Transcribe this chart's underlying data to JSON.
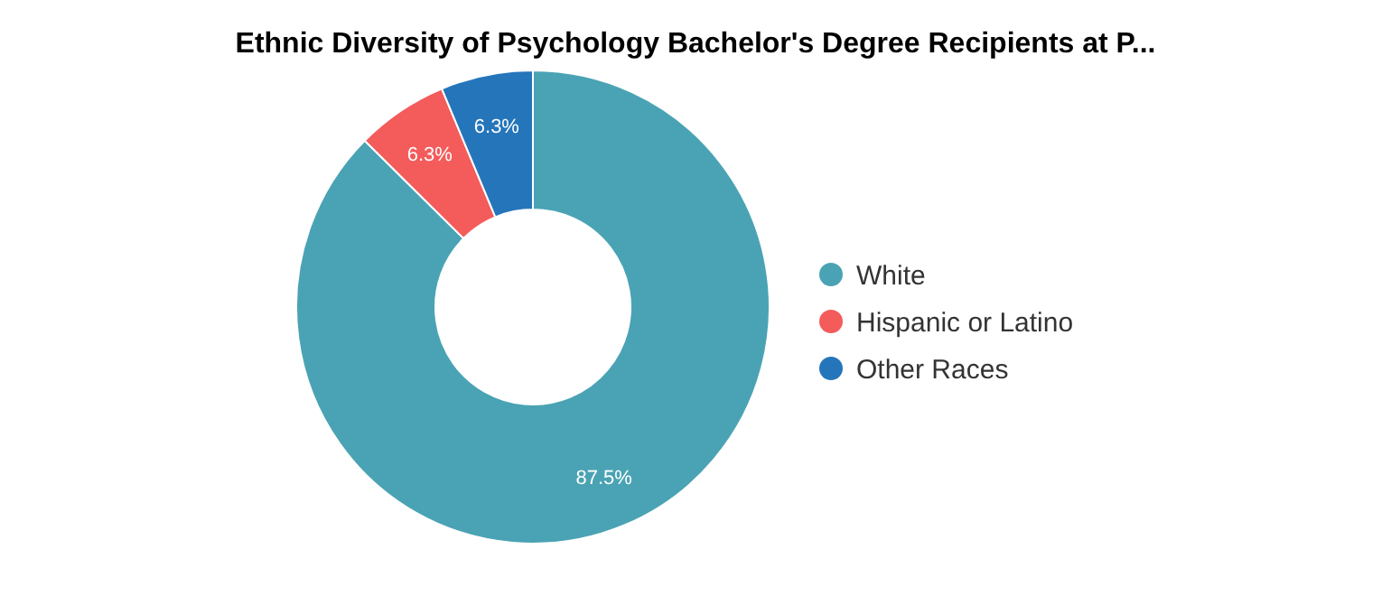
{
  "chart_data": {
    "type": "donut",
    "title": "Ethnic Diversity of Psychology Bachelor's Degree Recipients at P...",
    "categories": [
      "White",
      "Hispanic or Latino",
      "Other Races"
    ],
    "values": [
      87.5,
      6.3,
      6.3
    ],
    "colors": [
      "#4aa3b4",
      "#f45b5b",
      "#2575bb"
    ],
    "value_labels": [
      "87.5%",
      "6.3%",
      "6.3%"
    ],
    "legend": "right"
  }
}
